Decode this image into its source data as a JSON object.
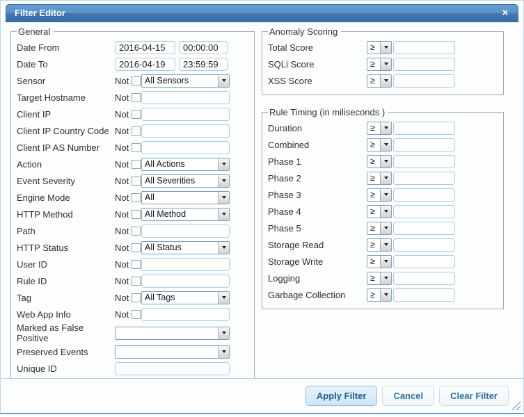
{
  "dialog": {
    "title": "Filter Editor",
    "close_icon": "×"
  },
  "general": {
    "legend": "General",
    "not_label": "Not",
    "date_from": {
      "label": "Date From",
      "date": "2016-04-15",
      "time": "00:00:00"
    },
    "date_to": {
      "label": "Date To",
      "date": "2016-04-19",
      "time": "23:59:59"
    },
    "rows": [
      {
        "label": "Sensor",
        "control": "select",
        "value": "All Sensors",
        "not": true
      },
      {
        "label": "Target Hostname",
        "control": "input",
        "value": "",
        "not": true
      },
      {
        "label": "Client IP",
        "control": "input",
        "value": "",
        "not": true
      },
      {
        "label": "Client IP Country Code",
        "control": "input",
        "value": "",
        "not": true
      },
      {
        "label": "Client IP AS Number",
        "control": "input",
        "value": "",
        "not": true
      },
      {
        "label": "Action",
        "control": "select",
        "value": "All Actions",
        "not": true
      },
      {
        "label": "Event Severity",
        "control": "select",
        "value": "All Severities",
        "not": true
      },
      {
        "label": "Engine Mode",
        "control": "select",
        "value": "All",
        "not": true
      },
      {
        "label": "HTTP Method",
        "control": "select",
        "value": "All Method",
        "not": true
      },
      {
        "label": "Path",
        "control": "input",
        "value": "",
        "not": true
      },
      {
        "label": "HTTP Status",
        "control": "select",
        "value": "All Status",
        "not": true
      },
      {
        "label": "User ID",
        "control": "input",
        "value": "",
        "not": true
      },
      {
        "label": "Rule ID",
        "control": "input",
        "value": "",
        "not": true
      },
      {
        "label": "Tag",
        "control": "select",
        "value": "All Tags",
        "not": true
      },
      {
        "label": "Web App Info",
        "control": "input",
        "value": "",
        "not": true
      },
      {
        "label": "Marked as False Positive",
        "control": "wide-select",
        "value": "",
        "not": false
      },
      {
        "label": "Preserved Events",
        "control": "wide-select",
        "value": "",
        "not": false
      },
      {
        "label": "Unique ID",
        "control": "wide-input",
        "value": "",
        "not": false
      }
    ]
  },
  "anomaly_scoring": {
    "legend": "Anomaly Scoring",
    "operator": "≥",
    "rows": [
      {
        "label": "Total Score",
        "value": ""
      },
      {
        "label": "SQLi Score",
        "value": ""
      },
      {
        "label": "XSS Score",
        "value": ""
      }
    ]
  },
  "rule_timing": {
    "legend": "Rule Timing (in miliseconds )",
    "operator": "≥",
    "rows": [
      {
        "label": "Duration",
        "value": ""
      },
      {
        "label": "Combined",
        "value": ""
      },
      {
        "label": "Phase 1",
        "value": ""
      },
      {
        "label": "Phase 2",
        "value": ""
      },
      {
        "label": "Phase 3",
        "value": ""
      },
      {
        "label": "Phase 4",
        "value": ""
      },
      {
        "label": "Phase 5",
        "value": ""
      },
      {
        "label": "Storage Read",
        "value": ""
      },
      {
        "label": "Storage Write",
        "value": ""
      },
      {
        "label": "Logging",
        "value": ""
      },
      {
        "label": "Garbage Collection",
        "value": ""
      }
    ]
  },
  "buttons": {
    "apply": "Apply Filter",
    "cancel": "Cancel",
    "clear": "Clear Filter"
  },
  "colors": {
    "titlebar_top": "#669dd1",
    "titlebar_bottom": "#3a6da6",
    "dialog_border": "#bcd6ea",
    "input_border": "#a9cbe5",
    "select_border": "#7f9db9",
    "fieldset_border": "#a6a6a6",
    "button_text": "#2e6e9e",
    "footer_separator": "#aed0ea"
  }
}
